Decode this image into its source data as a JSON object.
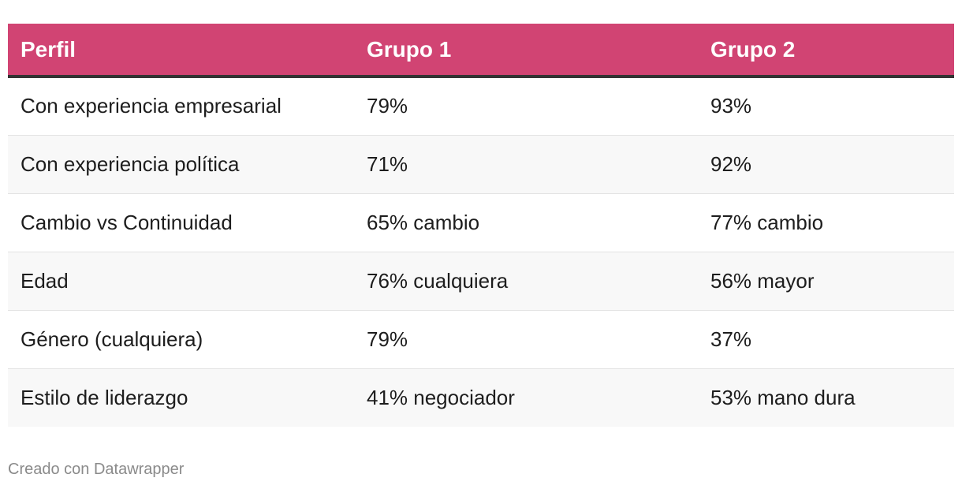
{
  "colors": {
    "header_background": "#d14473",
    "header_text": "#ffffff",
    "header_rule": "#333333",
    "row_alt_background": "#f8f8f8",
    "footer_text": "#8a8a8a"
  },
  "chart_data": {
    "type": "table",
    "columns": [
      "Perfil",
      "Grupo 1",
      "Grupo 2"
    ],
    "rows": [
      [
        "Con experiencia empresarial",
        "79%",
        "93%"
      ],
      [
        "Con experiencia política",
        "71%",
        "92%"
      ],
      [
        "Cambio vs Continuidad",
        "65% cambio",
        "77% cambio"
      ],
      [
        "Edad",
        "76% cualquiera",
        "56% mayor"
      ],
      [
        "Género (cualquiera)",
        "79%",
        "37%"
      ],
      [
        "Estilo de liderazgo",
        "41% negociador",
        "53% mano dura"
      ]
    ]
  },
  "footer": {
    "credit": "Creado con Datawrapper"
  }
}
